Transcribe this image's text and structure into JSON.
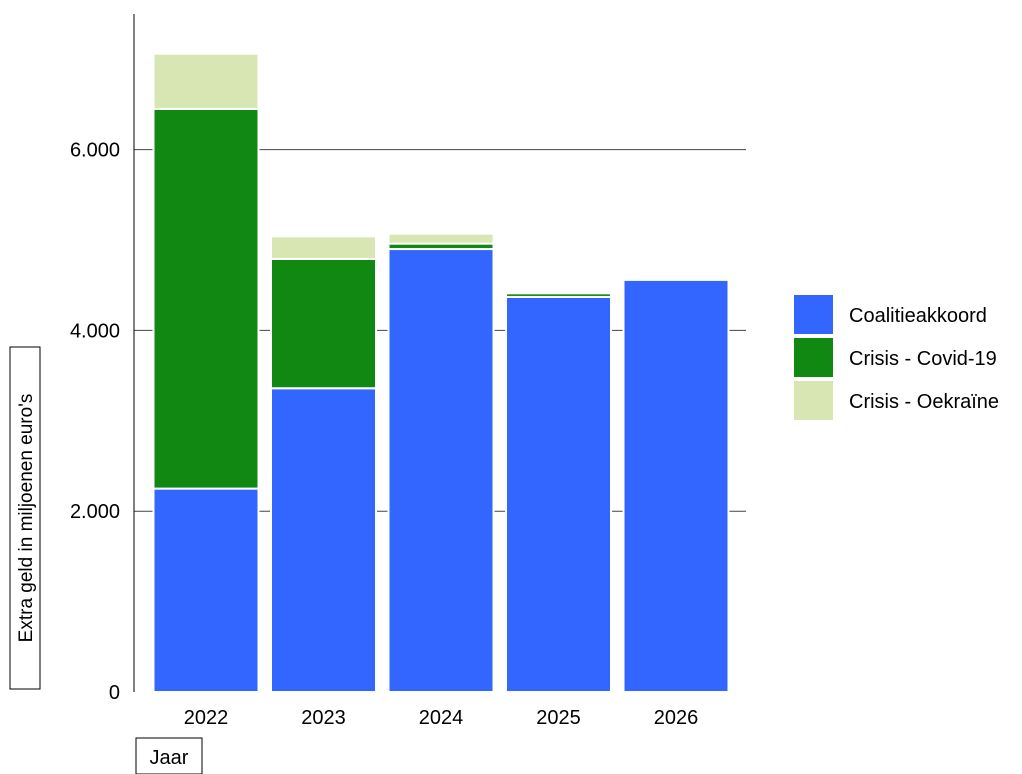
{
  "chart_data": {
    "type": "bar",
    "stacked": true,
    "categories": [
      "2022",
      "2023",
      "2024",
      "2025",
      "2026"
    ],
    "series": [
      {
        "name": "Coalitieakkoord",
        "color": "#3366ff",
        "values": [
          2250,
          3360,
          4900,
          4370,
          4560
        ]
      },
      {
        "name": "Crisis - Covid-19",
        "color": "#118811",
        "values": [
          4200,
          1430,
          60,
          40,
          20
        ]
      },
      {
        "name": "Crisis - Oekraïne",
        "color": "#d7e6b3",
        "values": [
          610,
          250,
          110,
          0,
          0
        ]
      }
    ],
    "xlabel": "Jaar",
    "ylabel": "Extra geld in miljoenen euro's",
    "ylim": [
      0,
      7500
    ],
    "yticks": [
      0,
      2000,
      4000,
      6000
    ],
    "ytick_labels": [
      "0",
      "2.000",
      "4.000",
      "6.000"
    ],
    "grid": "horizontal",
    "legend_position": "right"
  }
}
